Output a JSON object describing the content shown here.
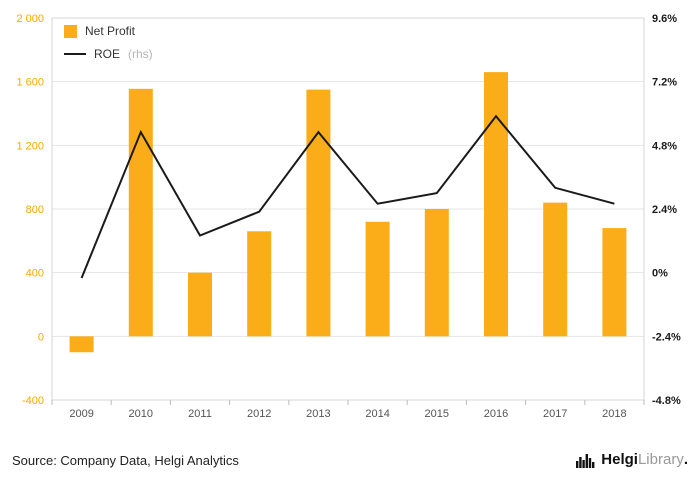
{
  "chart_data": {
    "type": "bar",
    "subtype": "bar+line combo",
    "categories": [
      "2009",
      "2010",
      "2011",
      "2012",
      "2013",
      "2014",
      "2015",
      "2016",
      "2017",
      "2018"
    ],
    "series": [
      {
        "name": "Net Profit",
        "type": "bar",
        "axis": "left",
        "color": "#FAAD18",
        "values": [
          -100,
          1555,
          400,
          660,
          1550,
          720,
          800,
          1660,
          840,
          680
        ]
      },
      {
        "name": "ROE",
        "type": "line",
        "axis": "right",
        "color": "#1a1a1a",
        "values": [
          -0.2,
          5.3,
          1.4,
          2.3,
          5.3,
          2.6,
          3.0,
          5.9,
          3.2,
          2.6
        ]
      }
    ],
    "left_axis": {
      "min": -400,
      "max": 2000,
      "ticks": [
        2000,
        1600,
        1200,
        800,
        400,
        0,
        -400
      ],
      "labels": [
        "2 000",
        "1 600",
        "1 200",
        "800",
        "400",
        "0",
        "-400"
      ]
    },
    "right_axis": {
      "min": -4.8,
      "max": 9.6,
      "ticks": [
        9.6,
        7.2,
        4.8,
        2.4,
        0,
        -2.4,
        -4.8
      ],
      "labels": [
        "9.6%",
        "7.2%",
        "4.8%",
        "2.4%",
        "0%",
        "-2.4%",
        "-4.8%"
      ]
    },
    "grid": true,
    "legend_position": "top-left",
    "title": "",
    "xlabel": "",
    "ylabel": ""
  },
  "legend": {
    "bar_label": "Net Profit",
    "line_label": "ROE",
    "line_suffix": "(rhs)"
  },
  "footer": {
    "source": "Source: Company Data, Helgi Analytics"
  },
  "logo": {
    "bold": "Helgi",
    "light": "Library",
    "suffix": "."
  },
  "colors": {
    "bar": "#FAAD18",
    "line": "#1a1a1a",
    "left_axis_text": "#F9A800",
    "right_axis_text": "#1a1a1a",
    "x_axis_text": "#555555",
    "grid": "#e4e4e4",
    "plot_border": "#d6d6d6",
    "tick": "#bbbbbb"
  }
}
